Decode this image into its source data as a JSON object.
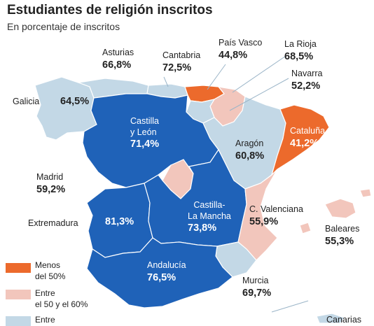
{
  "title": "Estudiantes de religión inscritos",
  "subtitle": "En porcentaje de inscritos",
  "colors": {
    "low": "#ec6a2c",
    "mid": "#f2c6bc",
    "high1": "#c3d8e6",
    "high2": "#1f62b8",
    "line": "#9bb5c8",
    "border": "#ffffff"
  },
  "regions": {
    "asturias": {
      "name": "Asturias",
      "value": "66,8%"
    },
    "cantabria": {
      "name": "Cantabria",
      "value": "72,5%"
    },
    "pais_vasco": {
      "name": "País Vasco",
      "value": "44,8%"
    },
    "la_rioja": {
      "name": "La Rioja",
      "value": "68,5%"
    },
    "navarra": {
      "name": "Navarra",
      "value": "52,2%"
    },
    "galicia": {
      "name": "Galicia",
      "value": "64,5%"
    },
    "castilla_leon": {
      "name_line1": "Castilla",
      "name_line2": "y León",
      "value": "71,4%"
    },
    "aragon": {
      "name": "Aragón",
      "value": "60,8%"
    },
    "cataluna": {
      "name": "Cataluña",
      "value": "41,2%"
    },
    "madrid": {
      "name": "Madrid",
      "value": "59,2%"
    },
    "extremadura": {
      "name": "Extremadura",
      "value": "81,3%"
    },
    "castilla_mancha": {
      "name_line1": "Castilla-",
      "name_line2": "La Mancha",
      "value": "73,8%"
    },
    "valenciana": {
      "name": "C. Valenciana",
      "value": "55,9%"
    },
    "baleares": {
      "name": "Baleares",
      "value": "55,3%"
    },
    "andalucia": {
      "name": "Andalucía",
      "value": "76,5%"
    },
    "murcia": {
      "name": "Murcia",
      "value": "69,7%"
    },
    "canarias": {
      "name": "Canarias"
    }
  },
  "legend": [
    {
      "line1": "Menos",
      "line2": "del 50%"
    },
    {
      "line1": "Entre",
      "line2": "el 50 y el 60%"
    },
    {
      "line1": "Entre",
      "line2": ""
    }
  ]
}
